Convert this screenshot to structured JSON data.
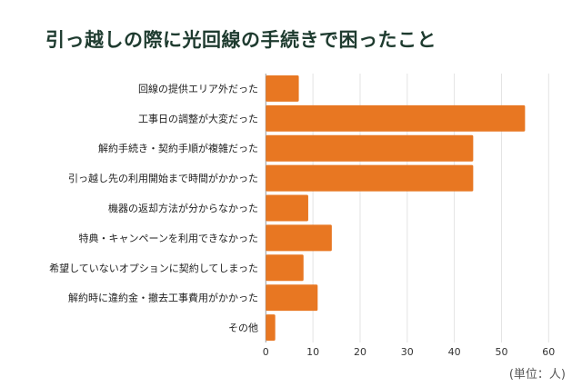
{
  "chart_data": {
    "type": "bar",
    "orientation": "horizontal",
    "title": "引っ越しの際に光回線の手続きで困ったこと",
    "categories": [
      "回線の提供エリア外だった",
      "工事日の調整が大変だった",
      "解約手続き・契約手順が複雑だった",
      "引っ越し先の利用開始まで時間がかかった",
      "機器の返却方法が分からなかった",
      "特典・キャンペーンを利用できなかった",
      "希望していないオプションに契約してしまった",
      "解約時に違約金・撤去工事費用がかかった",
      "その他"
    ],
    "values": [
      7,
      55,
      44,
      44,
      9,
      14,
      8,
      11,
      2
    ],
    "xlim": [
      0,
      60
    ],
    "xticks": [
      "0",
      "10",
      "20",
      "30",
      "40",
      "50",
      "60"
    ],
    "xtick_values": [
      0,
      10,
      20,
      30,
      40,
      50,
      60
    ],
    "unit_label": "(単位：人)",
    "grid": true,
    "bar_color": "#e87722",
    "grid_color": "#e3e3e3",
    "title_color": "#1e3b2f"
  }
}
